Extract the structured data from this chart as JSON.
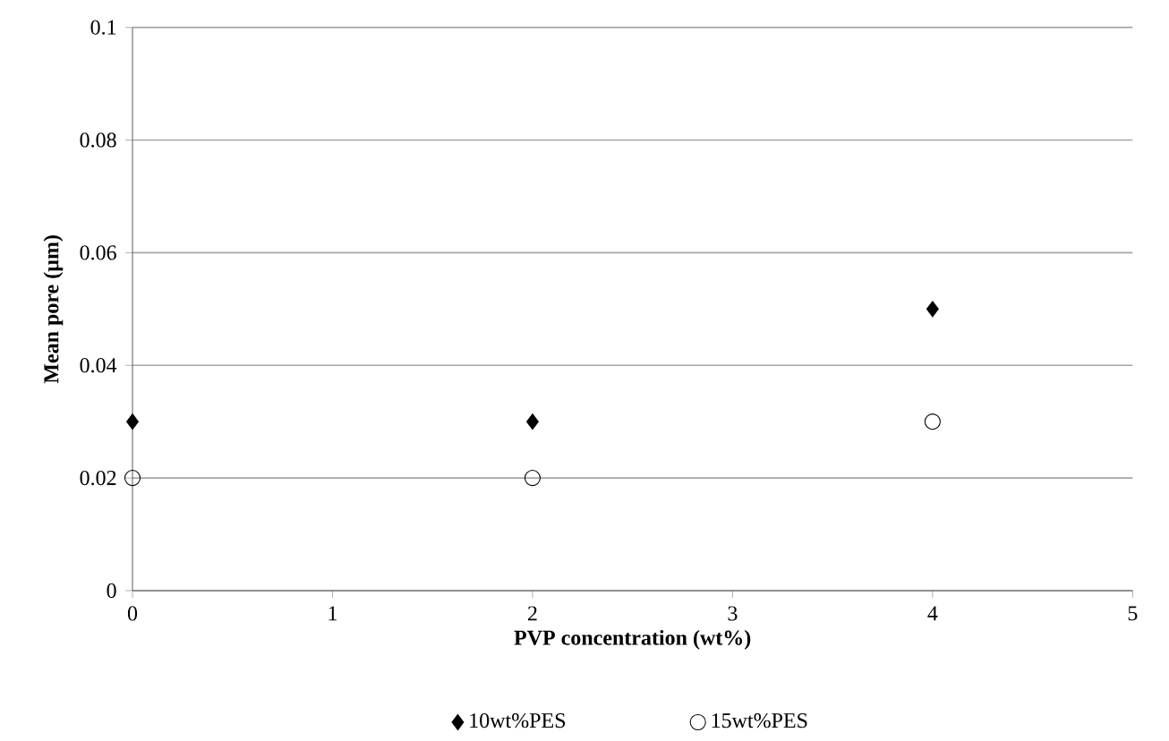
{
  "chart_data": {
    "type": "scatter",
    "xlabel": "PVP concentration (wt%)",
    "ylabel": "Mean pore (µm)",
    "series": [
      {
        "name": "10wt%PES",
        "color": "#000000",
        "marker": "diamond",
        "x": [
          0,
          2,
          4
        ],
        "values": [
          0.03,
          0.03,
          0.05
        ]
      },
      {
        "name": "15wt%PES",
        "color": "#000000",
        "marker": "circle",
        "x": [
          0,
          2,
          4
        ],
        "values": [
          0.02,
          0.02,
          0.03
        ]
      }
    ],
    "xlim": [
      0,
      5
    ],
    "xticks": [
      0,
      1,
      2,
      3,
      4,
      5
    ],
    "ylim": [
      0,
      0.1
    ],
    "yticks": [
      0,
      0.02,
      0.04,
      0.06,
      0.08,
      0.1
    ],
    "grid": "y",
    "legend": "bottom"
  }
}
